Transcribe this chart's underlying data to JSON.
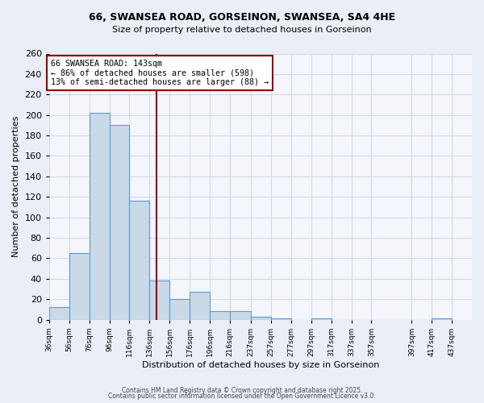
{
  "title_line1": "66, SWANSEA ROAD, GORSEINON, SWANSEA, SA4 4HE",
  "title_line2": "Size of property relative to detached houses in Gorseinon",
  "xlabel": "Distribution of detached houses by size in Gorseinon",
  "ylabel": "Number of detached properties",
  "bar_values": [
    12,
    65,
    202,
    190,
    116,
    38,
    20,
    27,
    8,
    8,
    3,
    1,
    0,
    1,
    0,
    0,
    0,
    0,
    1
  ],
  "bin_starts": [
    36,
    56,
    76,
    96,
    116,
    136,
    156,
    176,
    196,
    216,
    237,
    257,
    277,
    297,
    317,
    337,
    357,
    397,
    417
  ],
  "xtick_positions": [
    36,
    56,
    76,
    96,
    116,
    136,
    156,
    176,
    196,
    216,
    237,
    257,
    277,
    297,
    317,
    337,
    357,
    397,
    417,
    437
  ],
  "xtick_labels": [
    "36sqm",
    "56sqm",
    "76sqm",
    "96sqm",
    "116sqm",
    "136sqm",
    "156sqm",
    "176sqm",
    "196sqm",
    "216sqm",
    "237sqm",
    "257sqm",
    "277sqm",
    "297sqm",
    "317sqm",
    "337sqm",
    "357sqm",
    "397sqm",
    "417sqm",
    "437sqm"
  ],
  "bar_color": "#c9d9e8",
  "bar_edge_color": "#5b9bd5",
  "grid_color": "#d0d8e8",
  "annotation_text": "66 SWANSEA ROAD: 143sqm\n← 86% of detached houses are smaller (598)\n13% of semi-detached houses are larger (88) →",
  "vline_x": 143,
  "vline_color": "#8b0000",
  "annotation_box_color": "#8b0000",
  "ylim": [
    0,
    260
  ],
  "yticks": [
    0,
    20,
    40,
    60,
    80,
    100,
    120,
    140,
    160,
    180,
    200,
    220,
    240,
    260
  ],
  "footnote1": "Contains HM Land Registry data © Crown copyright and database right 2025.",
  "footnote2": "Contains public sector information licensed under the Open Government Licence v3.0.",
  "bg_color": "#eaeff7",
  "plot_bg_color": "#f4f6fb"
}
